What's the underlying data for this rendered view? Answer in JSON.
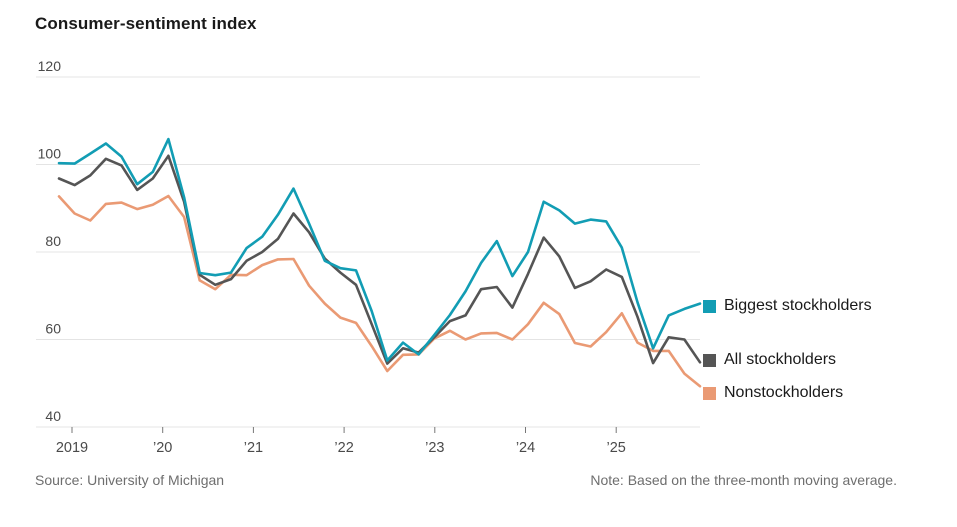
{
  "title": "Consumer-sentiment index",
  "source": "Source: University of Michigan",
  "note": "Note: Based on the three-month moving average.",
  "colors": {
    "biggest_stockholders": "#129db4",
    "all_stockholders": "#555555",
    "nonstockholders": "#ea9a74",
    "gridline": "#e4e4e4",
    "tick": "#777777",
    "axis_label": "#4a4a4a"
  },
  "chart_data": {
    "type": "line",
    "title": "Consumer-sentiment index",
    "xlabel": "",
    "ylabel": "",
    "ylim": [
      40,
      120
    ],
    "y_ticks": [
      40,
      60,
      80,
      100,
      120
    ],
    "x_tick_labels": [
      "2019",
      "’20",
      "’21",
      "’22",
      "’23",
      "’24",
      "’25"
    ],
    "x_range_months": [
      "Jan 2019",
      "Nov 2025"
    ],
    "grid": "horizontal",
    "legend_position": "right-of-line-ends",
    "note": "Three-month moving average, sampled at ~2-month intervals",
    "series": [
      {
        "name": "Biggest stockholders",
        "color": "#129db4",
        "values": [
          100.3,
          100.2,
          102.5,
          104.8,
          101.8,
          95.5,
          98.3,
          105.8,
          92.5,
          75.2,
          74.7,
          75.3,
          80.9,
          83.5,
          88.5,
          94.5,
          86.5,
          78.0,
          76.3,
          75.8,
          66.5,
          55.2,
          59.3,
          56.6,
          61.0,
          65.6,
          71.0,
          77.5,
          82.5,
          74.5,
          80.0,
          91.5,
          89.5,
          86.5,
          87.4,
          87.0,
          81.0,
          68.5,
          58.0,
          65.5,
          67.0,
          68.2
        ]
      },
      {
        "name": "All stockholders",
        "color": "#555555",
        "values": [
          96.8,
          95.3,
          97.5,
          101.3,
          99.8,
          94.2,
          96.8,
          102.0,
          91.5,
          74.8,
          72.5,
          73.8,
          78.0,
          80.0,
          83.0,
          88.8,
          84.5,
          78.5,
          75.3,
          72.5,
          63.5,
          54.5,
          58.0,
          57.0,
          60.5,
          64.2,
          65.5,
          71.5,
          72.0,
          67.3,
          75.0,
          83.3,
          79.0,
          71.8,
          73.3,
          76.0,
          74.3,
          65.2,
          54.6,
          60.5,
          60.0,
          54.8
        ]
      },
      {
        "name": "Nonstockholders",
        "color": "#ea9a74",
        "values": [
          92.7,
          88.8,
          87.2,
          91.0,
          91.3,
          89.8,
          90.8,
          92.8,
          88.0,
          73.5,
          71.5,
          74.8,
          74.7,
          77.0,
          78.3,
          78.4,
          72.3,
          68.2,
          65.0,
          63.8,
          58.5,
          52.8,
          56.5,
          56.6,
          60.2,
          62.0,
          60.0,
          61.4,
          61.5,
          60.0,
          63.5,
          68.4,
          65.8,
          59.2,
          58.4,
          61.7,
          66.0,
          59.3,
          57.4,
          57.4,
          52.2,
          49.3
        ]
      }
    ]
  }
}
